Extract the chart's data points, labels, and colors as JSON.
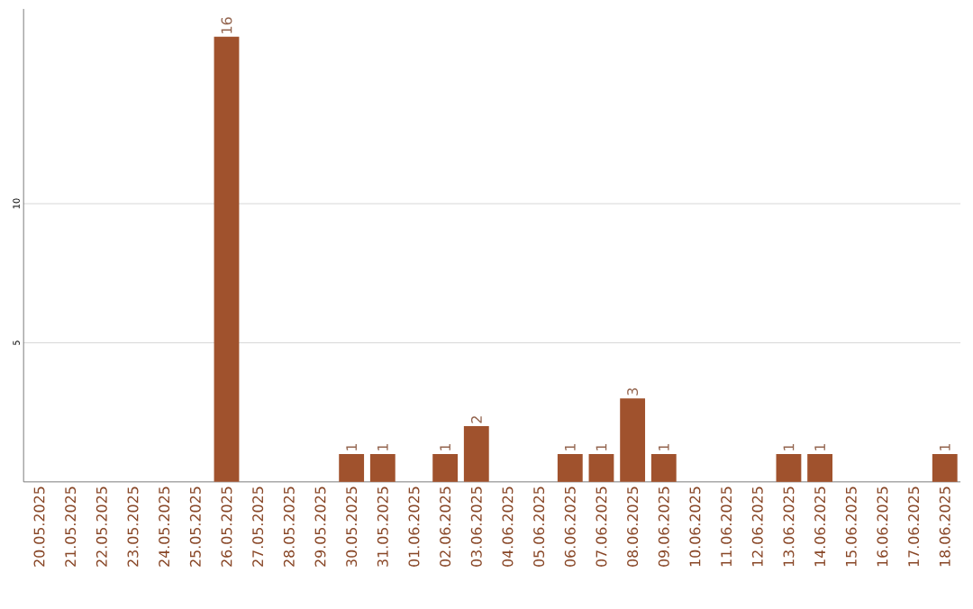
{
  "chart_data": {
    "type": "bar",
    "categories": [
      "20.05.2025",
      "21.05.2025",
      "22.05.2025",
      "23.05.2025",
      "24.05.2025",
      "25.05.2025",
      "26.05.2025",
      "27.05.2025",
      "28.05.2025",
      "29.05.2025",
      "30.05.2025",
      "31.05.2025",
      "01.06.2025",
      "02.06.2025",
      "03.06.2025",
      "04.06.2025",
      "05.06.2025",
      "06.06.2025",
      "07.06.2025",
      "08.06.2025",
      "09.06.2025",
      "10.06.2025",
      "11.06.2025",
      "12.06.2025",
      "13.06.2025",
      "14.06.2025",
      "15.06.2025",
      "16.06.2025",
      "17.06.2025",
      "18.06.2025"
    ],
    "values": [
      0,
      0,
      0,
      0,
      0,
      0,
      16,
      0,
      0,
      0,
      1,
      1,
      0,
      1,
      2,
      0,
      0,
      1,
      1,
      3,
      1,
      0,
      0,
      0,
      1,
      1,
      0,
      0,
      0,
      1
    ],
    "value_labels": [
      null,
      null,
      null,
      null,
      null,
      null,
      "16",
      null,
      null,
      null,
      "1",
      "1",
      null,
      "1",
      "2",
      null,
      null,
      "1",
      "1",
      "3",
      "1",
      null,
      null,
      null,
      "1",
      "1",
      null,
      null,
      null,
      "1"
    ],
    "color": "#a0522d",
    "ylim": [
      0,
      17
    ],
    "yticks": [
      5,
      10
    ],
    "grid": "y"
  }
}
